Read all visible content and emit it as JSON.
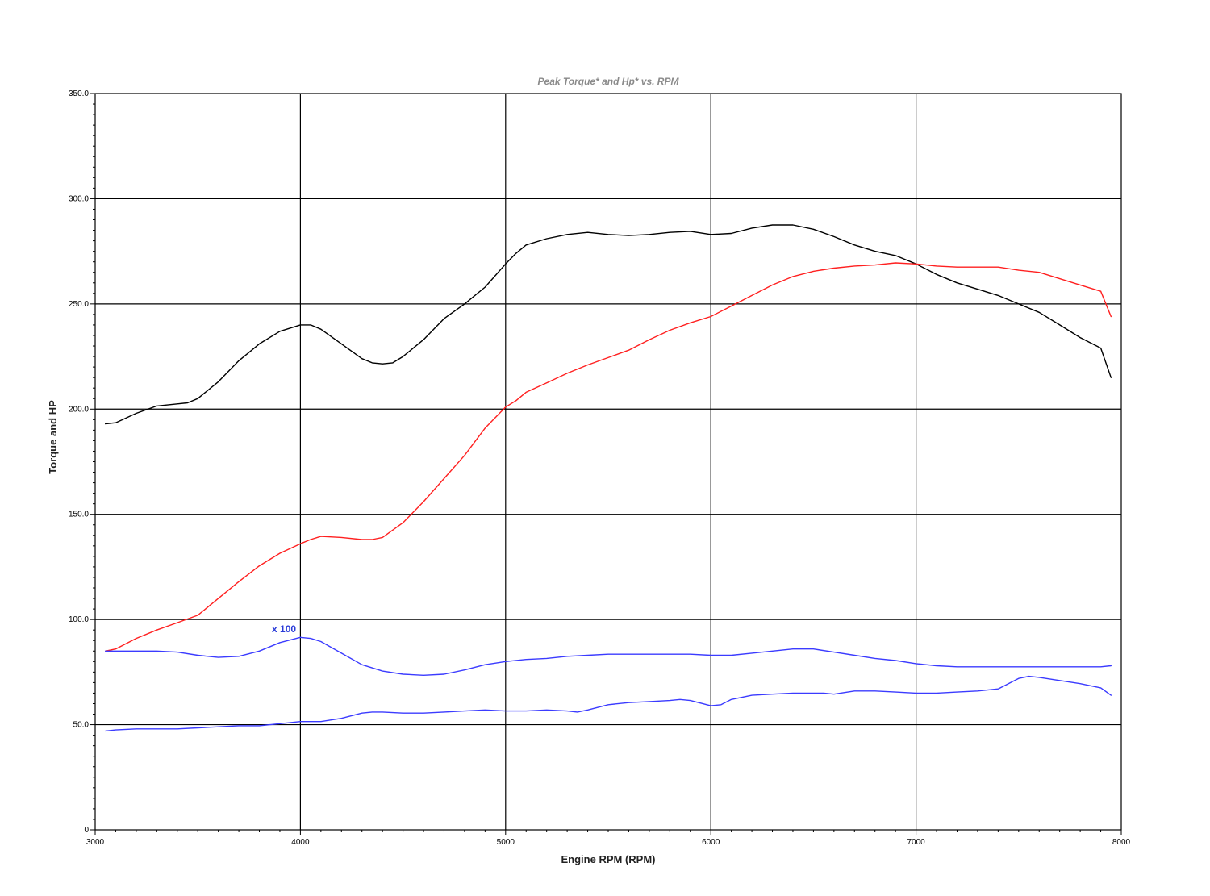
{
  "chart_data": {
    "type": "line",
    "title": "Peak Torque* and Hp* vs. RPM",
    "xlabel": "Engine RPM (RPM)",
    "ylabel": "Torque and HP",
    "xlim": [
      3000,
      8000
    ],
    "ylim": [
      0,
      350
    ],
    "x_ticks": [
      3000,
      4000,
      5000,
      6000,
      7000,
      8000
    ],
    "x_tick_labels": [
      "3000",
      "4000",
      "5000",
      "6000",
      "7000",
      "8000"
    ],
    "y_ticks": [
      0,
      50,
      100,
      150,
      200,
      250,
      300,
      350
    ],
    "y_tick_labels": [
      "0",
      "50.0",
      "100.0",
      "150.0",
      "200.0",
      "250.0",
      "300.0",
      "350.0"
    ],
    "grid": true,
    "legend": "none",
    "annotations": [
      {
        "text": "x 100",
        "x": 3920,
        "y": 94,
        "color": "#2a3bd8"
      }
    ],
    "series": [
      {
        "color": "#000000",
        "x": [
          3050,
          3100,
          3200,
          3300,
          3400,
          3450,
          3500,
          3600,
          3700,
          3800,
          3900,
          4000,
          4050,
          4100,
          4200,
          4300,
          4350,
          4400,
          4450,
          4500,
          4600,
          4700,
          4800,
          4900,
          5000,
          5050,
          5100,
          5200,
          5300,
          5400,
          5500,
          5600,
          5700,
          5800,
          5900,
          6000,
          6100,
          6200,
          6300,
          6400,
          6500,
          6600,
          6700,
          6800,
          6900,
          7000,
          7100,
          7200,
          7300,
          7400,
          7500,
          7600,
          7700,
          7800,
          7900,
          7950
        ],
        "y": [
          193,
          193.5,
          198,
          201.5,
          202.5,
          203,
          205,
          213,
          223,
          231,
          237,
          240,
          240,
          238,
          231,
          224,
          222,
          221.5,
          222,
          225,
          233,
          243,
          250,
          258,
          269,
          274,
          278,
          281,
          283,
          284,
          283,
          282.5,
          283,
          284,
          284.5,
          283,
          283.5,
          286,
          287.5,
          287.5,
          285.5,
          282,
          278,
          275,
          273,
          269,
          264,
          260,
          257,
          254,
          250,
          246,
          240,
          234,
          229,
          215
        ]
      },
      {
        "color": "#ff2020",
        "x": [
          3050,
          3100,
          3200,
          3300,
          3400,
          3500,
          3600,
          3700,
          3800,
          3900,
          4000,
          4050,
          4100,
          4200,
          4300,
          4350,
          4400,
          4500,
          4600,
          4700,
          4800,
          4900,
          5000,
          5050,
          5100,
          5200,
          5300,
          5400,
          5500,
          5600,
          5700,
          5800,
          5900,
          6000,
          6100,
          6200,
          6300,
          6400,
          6500,
          6600,
          6700,
          6800,
          6900,
          7000,
          7100,
          7200,
          7300,
          7400,
          7500,
          7600,
          7700,
          7800,
          7900,
          7950
        ],
        "y": [
          85,
          86,
          91,
          95,
          98.5,
          102,
          110,
          118,
          125.5,
          131.5,
          136,
          138,
          139.5,
          139,
          138,
          138,
          139,
          146,
          156,
          167,
          178,
          191,
          201,
          204,
          208,
          212.5,
          217,
          221,
          224.5,
          228,
          233,
          237.5,
          241,
          244,
          249,
          254,
          259,
          263,
          265.5,
          267,
          268,
          268.5,
          269.5,
          269,
          268,
          267.5,
          267.5,
          267.5,
          266,
          265,
          262,
          259,
          256,
          244
        ]
      },
      {
        "color": "#3b3bff",
        "x": [
          3050,
          3100,
          3200,
          3300,
          3400,
          3500,
          3600,
          3700,
          3800,
          3900,
          4000,
          4050,
          4100,
          4200,
          4300,
          4400,
          4500,
          4600,
          4700,
          4800,
          4900,
          5000,
          5100,
          5200,
          5300,
          5400,
          5500,
          5600,
          5700,
          5800,
          5900,
          6000,
          6100,
          6200,
          6300,
          6400,
          6500,
          6600,
          6700,
          6800,
          6900,
          7000,
          7100,
          7200,
          7300,
          7400,
          7500,
          7600,
          7700,
          7800,
          7900,
          7950
        ],
        "y": [
          85,
          85,
          85,
          85,
          84.5,
          83,
          82,
          82.5,
          85,
          89,
          91.5,
          91,
          89.5,
          84,
          78.5,
          75.5,
          74,
          73.5,
          74,
          76,
          78.5,
          80,
          81,
          81.5,
          82.5,
          83,
          83.5,
          83.5,
          83.5,
          83.5,
          83.5,
          83,
          83,
          84,
          85,
          86,
          86,
          84.5,
          83,
          81.5,
          80.5,
          79,
          78,
          77.5,
          77.5,
          77.5,
          77.5,
          77.5,
          77.5,
          77.5,
          77.5,
          78
        ]
      },
      {
        "color": "#3b3bff",
        "x": [
          3050,
          3100,
          3200,
          3300,
          3400,
          3500,
          3600,
          3700,
          3800,
          3900,
          4000,
          4050,
          4100,
          4200,
          4300,
          4350,
          4400,
          4500,
          4600,
          4700,
          4800,
          4900,
          5000,
          5100,
          5200,
          5300,
          5350,
          5400,
          5500,
          5600,
          5700,
          5800,
          5850,
          5900,
          6000,
          6050,
          6100,
          6200,
          6300,
          6400,
          6500,
          6550,
          6600,
          6700,
          6800,
          6900,
          7000,
          7100,
          7200,
          7300,
          7400,
          7450,
          7500,
          7550,
          7600,
          7700,
          7800,
          7900,
          7950
        ],
        "y": [
          47,
          47.5,
          48,
          48,
          48,
          48.5,
          49,
          49.5,
          49.5,
          50.5,
          51.5,
          51.5,
          51.5,
          53,
          55.5,
          56,
          56,
          55.5,
          55.5,
          56,
          56.5,
          57,
          56.5,
          56.5,
          57,
          56.5,
          56,
          57,
          59.5,
          60.5,
          61,
          61.5,
          62,
          61.5,
          59,
          59.5,
          62,
          64,
          64.5,
          65,
          65,
          65,
          64.5,
          66,
          66,
          65.5,
          65,
          65,
          65.5,
          66,
          67,
          69.5,
          72,
          73,
          72.5,
          71,
          69.5,
          67.5,
          64
        ]
      }
    ]
  }
}
